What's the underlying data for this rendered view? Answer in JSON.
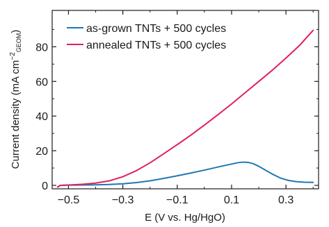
{
  "chart_data": {
    "type": "line",
    "xlabel": "E (V vs. Hg/HgO)",
    "ylabel": {
      "prefix": "Current density (mA cm",
      "superscript": "−2",
      "subscript": "GEOM",
      "suffix": ")"
    },
    "xlim": [
      -0.56,
      0.42
    ],
    "ylim": [
      -2,
      101
    ],
    "xticks": [
      -0.5,
      -0.3,
      -0.1,
      0.1,
      0.3
    ],
    "xtick_labels": [
      "−0.5",
      "−0.3",
      "−0.1",
      "0.1",
      "0.3"
    ],
    "yticks": [
      0,
      20,
      40,
      60,
      80
    ],
    "ytick_labels": [
      "0",
      "20",
      "40",
      "60",
      "80"
    ],
    "grid": false,
    "legend_position": "top-left",
    "series": [
      {
        "name": "as-grown TNTs + 500 cycles",
        "color": "#1f77b4",
        "x": [
          -0.54,
          -0.53,
          -0.5,
          -0.45,
          -0.4,
          -0.35,
          -0.3,
          -0.25,
          -0.2,
          -0.15,
          -0.1,
          -0.05,
          0.0,
          0.05,
          0.1,
          0.12,
          0.14,
          0.16,
          0.18,
          0.2,
          0.22,
          0.25,
          0.28,
          0.31,
          0.34,
          0.37,
          0.4
        ],
        "y": [
          -1.0,
          0.0,
          0.1,
          0.2,
          0.3,
          0.5,
          0.9,
          1.6,
          2.6,
          4.0,
          5.5,
          7.1,
          8.8,
          10.6,
          12.3,
          13.0,
          13.4,
          13.3,
          12.5,
          11.0,
          9.2,
          6.5,
          4.2,
          2.8,
          2.1,
          1.8,
          1.7
        ]
      },
      {
        "name": "annealed TNTs + 500 cycles",
        "color": "#e0205a",
        "x": [
          -0.54,
          -0.53,
          -0.5,
          -0.45,
          -0.4,
          -0.35,
          -0.3,
          -0.25,
          -0.2,
          -0.15,
          -0.1,
          -0.05,
          0.0,
          0.05,
          0.1,
          0.15,
          0.2,
          0.25,
          0.3,
          0.35,
          0.4
        ],
        "y": [
          -1.0,
          0.0,
          0.2,
          0.6,
          1.3,
          2.6,
          5.0,
          8.5,
          13.0,
          18.2,
          23.5,
          29.0,
          34.8,
          40.8,
          47.0,
          53.5,
          60.0,
          66.5,
          73.5,
          80.8,
          89.5
        ]
      }
    ]
  }
}
